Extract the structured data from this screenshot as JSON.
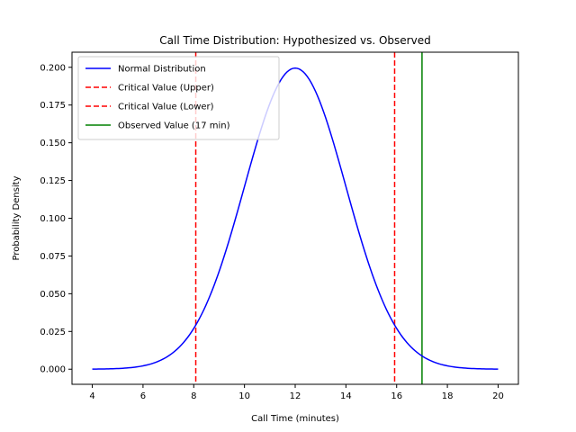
{
  "chart_data": {
    "type": "line",
    "title": "Call Time Distribution: Hypothesized vs. Observed",
    "xlabel": "Call Time (minutes)",
    "ylabel": "Probability Density",
    "xlim": [
      3.2,
      20.8
    ],
    "ylim": [
      -0.01,
      0.21
    ],
    "xticks": [
      4,
      6,
      8,
      10,
      12,
      14,
      16,
      18,
      20
    ],
    "yticks": [
      0.0,
      0.025,
      0.05,
      0.075,
      0.1,
      0.125,
      0.15,
      0.175,
      0.2
    ],
    "yticklabels": [
      "0.000",
      "0.025",
      "0.050",
      "0.075",
      "0.100",
      "0.125",
      "0.150",
      "0.175",
      "0.200"
    ],
    "grid": false,
    "legend_position": "top-left",
    "series": [
      {
        "name": "Normal Distribution",
        "kind": "curve",
        "color": "#0000ff",
        "style": "solid",
        "mean": 12,
        "sd": 2,
        "x_range": [
          4,
          20
        ]
      },
      {
        "name": "Critical Value (Upper)",
        "kind": "vline",
        "x": 15.92,
        "color": "#ff0000",
        "style": "dashed"
      },
      {
        "name": "Critical Value (Lower)",
        "kind": "vline",
        "x": 8.08,
        "color": "#ff0000",
        "style": "dashed"
      },
      {
        "name": "Observed Value (17 min)",
        "kind": "vline",
        "x": 17,
        "color": "#008000",
        "style": "solid"
      }
    ]
  }
}
